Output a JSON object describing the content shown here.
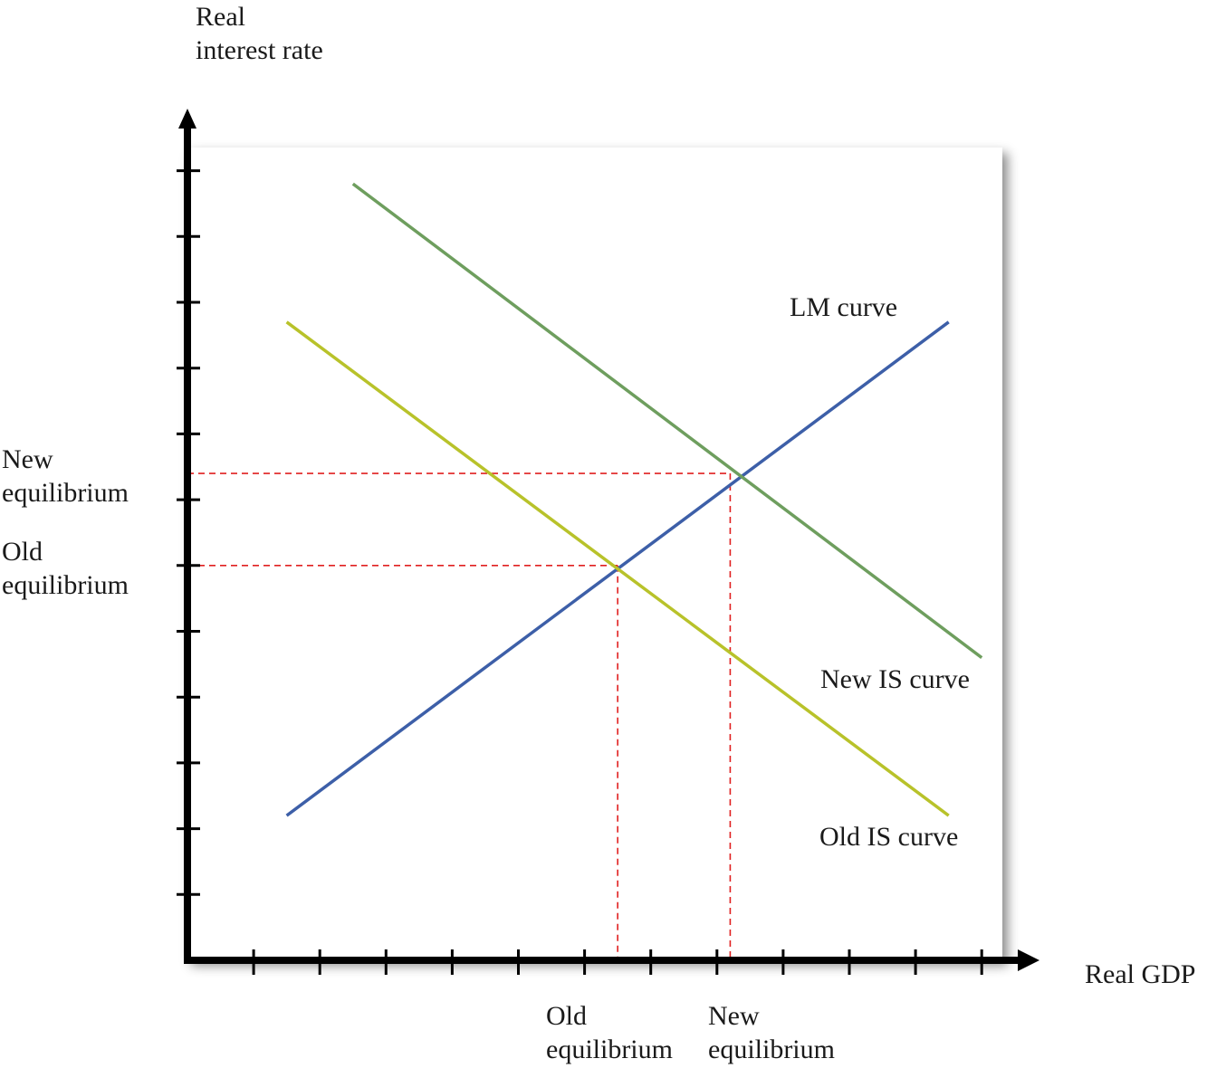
{
  "chart_data": {
    "type": "line",
    "title": "",
    "xlabel": "Real GDP",
    "ylabel": "Real interest rate",
    "xlim": [
      0,
      12
    ],
    "ylim": [
      0,
      12
    ],
    "grid": false,
    "tick_labels_shown": false,
    "x_ticks": [
      1,
      2,
      3,
      4,
      5,
      6,
      7,
      8,
      9,
      10,
      11,
      12
    ],
    "y_ticks": [
      1,
      2,
      3,
      4,
      5,
      6,
      7,
      8,
      9,
      10,
      11,
      12
    ],
    "series": [
      {
        "name": "LM curve",
        "color": "#3d5fa8",
        "x": [
          1.5,
          11.5
        ],
        "y": [
          2.2,
          9.7
        ]
      },
      {
        "name": "New IS curve",
        "color": "#6e9e5e",
        "x": [
          2.5,
          12.0
        ],
        "y": [
          11.8,
          4.6
        ]
      },
      {
        "name": "Old IS curve",
        "color": "#b8c22a",
        "x": [
          1.5,
          11.5
        ],
        "y": [
          9.7,
          2.2
        ]
      }
    ],
    "equilibria": [
      {
        "name": "Old",
        "x": 6.5,
        "y": 6.0,
        "x_label": "Old equilibrium",
        "y_label": "Old equilibrium"
      },
      {
        "name": "New",
        "x": 8.2,
        "y": 7.4,
        "x_label": "New equilibrium",
        "y_label": "New equilibrium"
      }
    ],
    "guide_color": "#e02020"
  }
}
